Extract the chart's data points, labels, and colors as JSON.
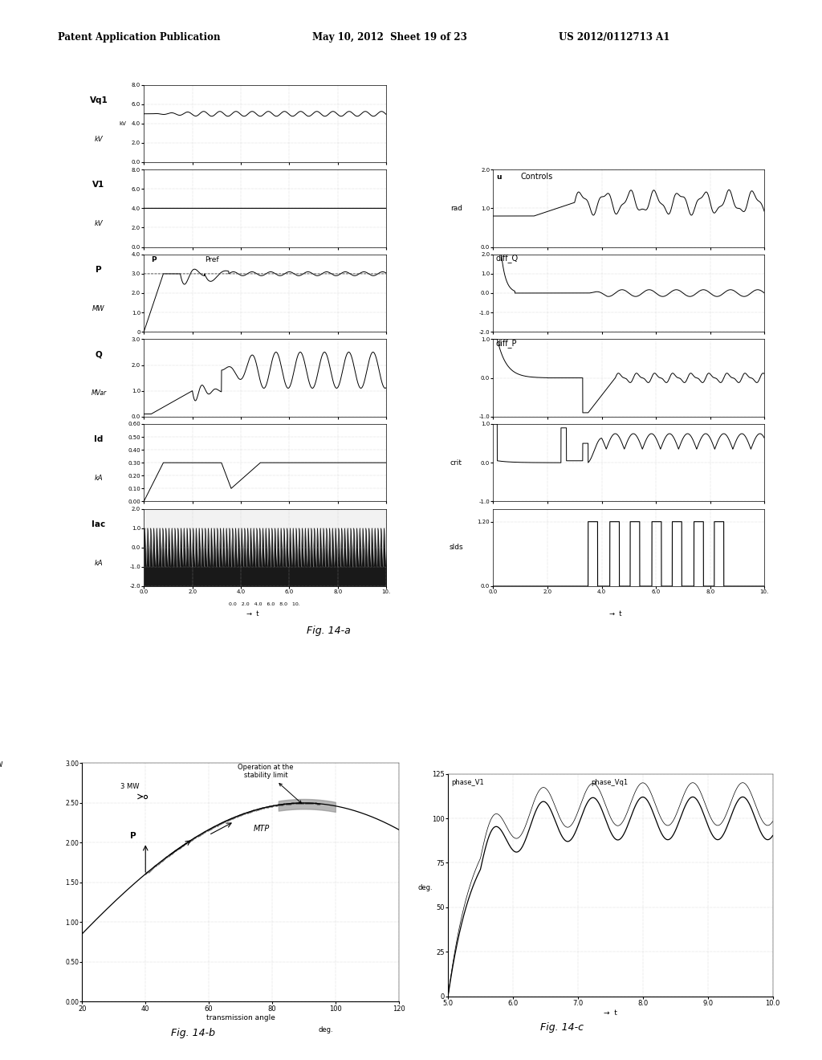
{
  "header_left": "Patent Application Publication",
  "header_mid": "May 10, 2012  Sheet 19 of 23",
  "header_right": "US 2012/0112713 A1",
  "fig14a_label": "Fig. 14-a",
  "fig14b_label": "Fig. 14-b",
  "fig14c_label": "Fig. 14-c",
  "background": "#ffffff",
  "line_color": "#000000",
  "grid_color": "#bbbbbb"
}
